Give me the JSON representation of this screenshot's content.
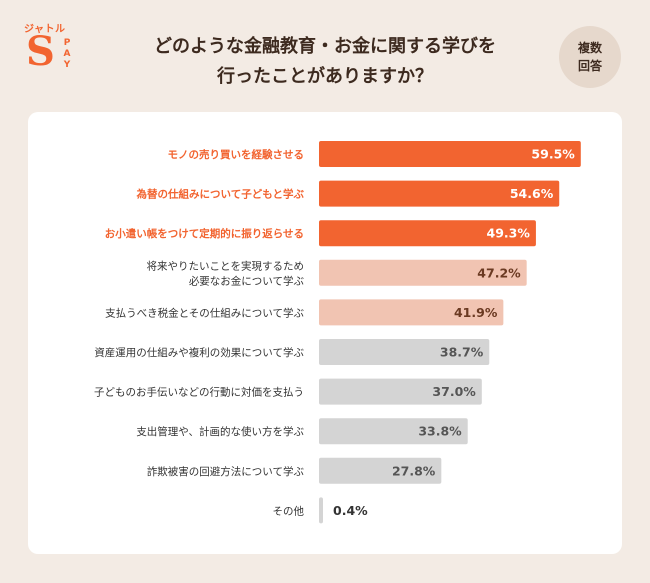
{
  "header": {
    "title": "どのような金融教育・お金に関する学びを\n行ったことがありますか？",
    "badge": "複数\n回答"
  },
  "logo": {
    "brand_top": "ジャトル",
    "brand_s": "S",
    "brand_side": "PAY"
  },
  "colors": {
    "background": "#f3ebe4",
    "card": "#ffffff",
    "title": "#3d2a1f",
    "top_bar": "#f26430",
    "mid_bar": "#f1c4b2",
    "low_bar": "#d4d4d4",
    "top_label": "#f26430",
    "mid_value": "#6b3a22",
    "low_value": "#555555"
  },
  "chart_data": {
    "type": "bar",
    "orientation": "horizontal",
    "title": "どのような金融教育・お金に関する学びを行ったことがありますか？",
    "unit": "%",
    "xlim": [
      0,
      100
    ],
    "categories": [
      "モノの売り買いを経験させる",
      "為替の仕組みについて子どもと学ぶ",
      "お小遣い帳をつけて定期的に振り返らせる",
      "将来やりたいことを実現するため\n必要なお金について学ぶ",
      "支払うべき税金とその仕組みについて学ぶ",
      "資産運用の仕組みや複利の効果について学ぶ",
      "子どものお手伝いなどの行動に対価を支払う",
      "支出管理や、計画的な使い方を学ぶ",
      "詐欺被害の回避方法について学ぶ",
      "その他"
    ],
    "values": [
      59.5,
      54.6,
      49.3,
      47.2,
      41.9,
      38.7,
      37.0,
      33.8,
      27.8,
      0.4
    ],
    "labels": [
      "59.5%",
      "54.6%",
      "49.3%",
      "47.2%",
      "41.9%",
      "38.7%",
      "37.0%",
      "33.8%",
      "27.8%",
      "0.4%"
    ],
    "tiers": [
      "top",
      "top",
      "top",
      "mid",
      "mid",
      "low",
      "low",
      "low",
      "low",
      "low"
    ]
  }
}
